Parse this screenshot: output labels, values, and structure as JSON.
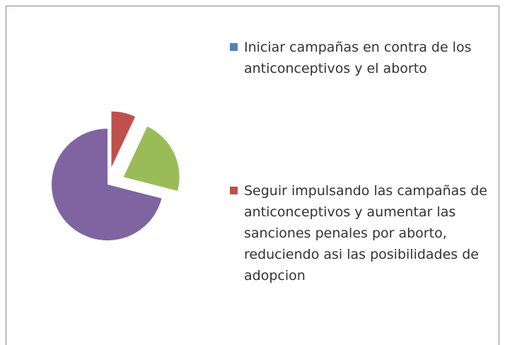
{
  "chart_data": {
    "type": "pie",
    "categories": [
      "Iniciar campañas en contra de los anticonceptivos y el aborto",
      "Seguir impulsando las campañas de anticonceptivos y aumentar las sanciones penales por aborto, reduciendo asi las posibilidades de adopcion",
      null,
      null
    ],
    "values": [
      0,
      7,
      22,
      71
    ],
    "colors": [
      "#4f81bd",
      "#c0504d",
      "#9bbb59",
      "#8064a2"
    ],
    "legend": "right"
  }
}
